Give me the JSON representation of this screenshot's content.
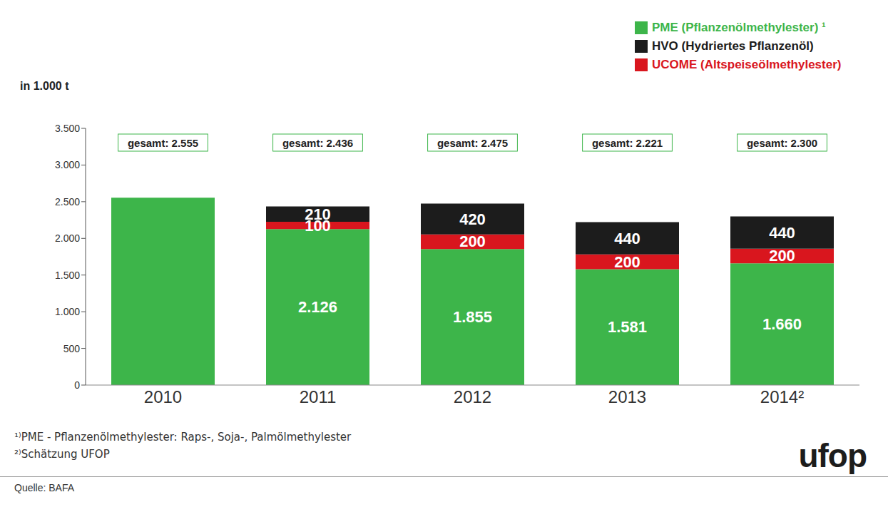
{
  "chart_data": {
    "type": "bar",
    "stacked": true,
    "data_labels": true,
    "y_label": "in 1.000 t",
    "categories": [
      "2010",
      "2011",
      "2012",
      "2013",
      "2014²"
    ],
    "series": [
      {
        "name": "PME (Pflanzenölmethylester) ¹",
        "color": "#3db54a",
        "values": [
          2555,
          2126,
          1855,
          1581,
          1660
        ],
        "value_labels": [
          null,
          "2.126",
          "1.855",
          "1.581",
          "1.660"
        ]
      },
      {
        "name": "HVO (Hydriertes Pflanzenöl)",
        "color": "#1c1c1c",
        "values": [
          null,
          210,
          420,
          440,
          440
        ]
      },
      {
        "name": "UCOME (Altspeiseölmethylester)",
        "color": "#d9161e",
        "values": [
          null,
          100,
          200,
          200,
          200
        ]
      }
    ],
    "annotations": [
      "gesamt: 2.555",
      "gesamt: 2.436",
      "gesamt: 2.475",
      "gesamt: 2.221",
      "gesamt: 2.300"
    ],
    "ylim": [
      0,
      3500
    ],
    "yticks": [
      0,
      500,
      {
        "value": 1000,
        "label": "1.000"
      },
      {
        "value": 1500,
        "label": "1.500"
      },
      {
        "value": 2000,
        "label": "2.000"
      },
      {
        "value": 2500,
        "label": "2.500"
      },
      {
        "value": 3000,
        "label": "3.000"
      },
      {
        "value": 3500,
        "label": "3.500"
      }
    ],
    "grid": false,
    "legend": "top-right",
    "notes": [
      "¹⁾PME - Pflanzenölmethylester: Raps-, Soja-, Palmölmethylester",
      "²⁾Schätzung UFOP"
    ],
    "source": "Quelle: BAFA",
    "logo": "ufop"
  }
}
